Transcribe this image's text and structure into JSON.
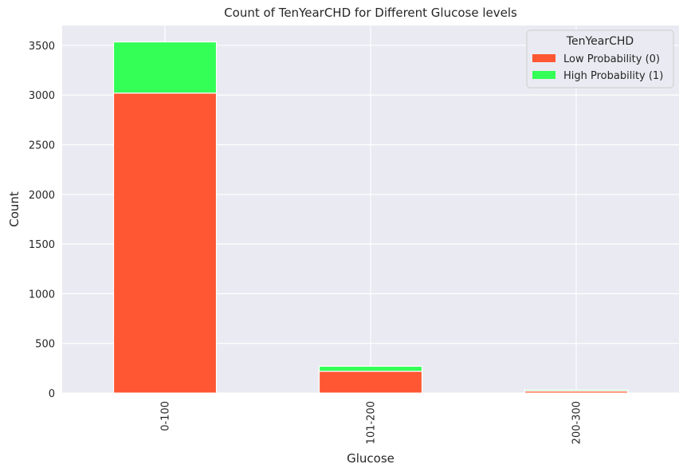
{
  "chart_data": {
    "type": "bar",
    "stacked": true,
    "title": "Count of TenYearCHD for Different Glucose levels",
    "xlabel": "Glucose",
    "ylabel": "Count",
    "categories": [
      "0-100",
      "101-200",
      "200-300"
    ],
    "series": [
      {
        "name": "Low Probability (0)",
        "values": [
          3020,
          220,
          20
        ],
        "color": "#FF5733"
      },
      {
        "name": "High Probability (1)",
        "values": [
          515,
          50,
          12
        ],
        "color": "#33FF57"
      }
    ],
    "ylim": [
      0,
      3700
    ],
    "yticks": [
      0,
      500,
      1000,
      1500,
      2000,
      2500,
      3000,
      3500
    ],
    "grid": true,
    "legend": {
      "title": "TenYearCHD",
      "placement": "top-right"
    },
    "background_color": "#EAEAF2",
    "grid_color": "#FFFFFF"
  }
}
